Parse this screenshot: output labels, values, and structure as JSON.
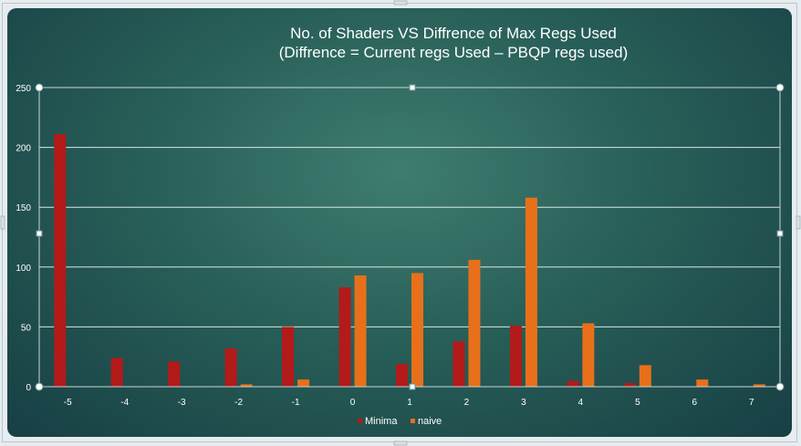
{
  "chart_data": {
    "type": "bar",
    "title_line1": "No. of Shaders VS Diffrence of Max Regs Used",
    "title_line2": "(Diffrence = Current regs Used – PBQP regs used)",
    "categories": [
      "-5",
      "-4",
      "-3",
      "-2",
      "-1",
      "0",
      "1",
      "2",
      "3",
      "4",
      "5",
      "6",
      "7"
    ],
    "series": [
      {
        "name": "Minima",
        "color": "#b31a1a",
        "values": [
          211,
          24,
          21,
          32,
          50,
          83,
          19,
          38,
          51,
          5,
          3,
          0,
          0
        ]
      },
      {
        "name": "naive",
        "color": "#e8701a",
        "values": [
          0,
          0,
          0,
          2,
          6,
          93,
          95,
          106,
          158,
          53,
          18,
          6,
          2
        ]
      }
    ],
    "ylim": [
      0,
      250
    ],
    "yticks": [
      0,
      50,
      100,
      150,
      200,
      250
    ],
    "grid": true,
    "legend": "bottom"
  }
}
